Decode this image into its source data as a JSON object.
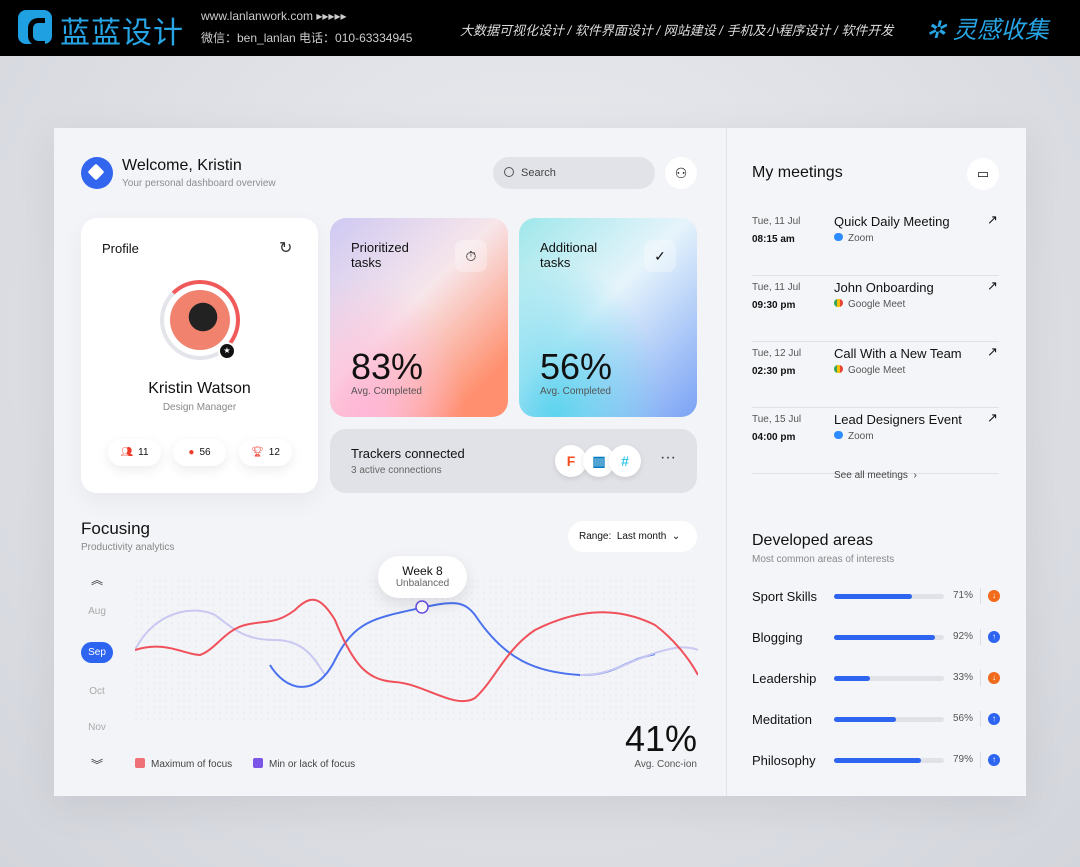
{
  "topbar": {
    "brand": "蓝蓝设计",
    "site": "www.lanlanwork.com ▸▸▸▸▸",
    "contact": "微信：ben_lanlan   电话：010-63334945",
    "services": "大数据可视化设计 / 软件界面设计 / 网站建设 / 手机及小程序设计 / 软件开发",
    "collect": "灵感收集"
  },
  "header": {
    "title": "Welcome, Kristin",
    "subtitle": "Your personal dashboard overview",
    "search_placeholder": "Search"
  },
  "profile": {
    "title": "Profile",
    "name": "Kristin Watson",
    "role": "Design Manager",
    "progress": 0.3,
    "stats": [
      {
        "icon": "users-icon",
        "value": "11"
      },
      {
        "icon": "badge-check-icon",
        "value": "56"
      },
      {
        "icon": "trophy-icon",
        "value": "12"
      }
    ]
  },
  "tasks": [
    {
      "title": "Prioritized tasks",
      "icon": "timer-icon",
      "value": "83%",
      "sub": "Avg. Completed"
    },
    {
      "title": "Additional tasks",
      "icon": "check-circle-icon",
      "value": "56%",
      "sub": "Avg. Completed"
    }
  ],
  "trackers": {
    "title": "Trackers connected",
    "sub": "3 active connections",
    "apps": [
      "Figma",
      "Trello",
      "Slack"
    ]
  },
  "focusing": {
    "title": "Focusing",
    "subtitle": "Productivity analytics",
    "range_label": "Range:",
    "range_value": "Last month",
    "months": [
      "Aug",
      "Sep",
      "Oct",
      "Nov"
    ],
    "selected_month": "Sep",
    "tooltip_title": "Week 8",
    "tooltip_sub": "Unbalanced",
    "legend": [
      {
        "name": "Maximum of focus",
        "color": "#f0505a"
      },
      {
        "name": "Min or lack of focus",
        "color": "#7a55e8"
      }
    ],
    "big_value": "41%",
    "big_label": "Avg. Conc-ion"
  },
  "meetings": {
    "title": "My meetings",
    "items": [
      {
        "date": "Tue, 11 Jul",
        "time": "08:15 am",
        "name": "Quick Daily Meeting",
        "platform": "Zoom"
      },
      {
        "date": "Tue, 11 Jul",
        "time": "09:30 pm",
        "name": "John Onboarding",
        "platform": "Google Meet"
      },
      {
        "date": "Tue, 12 Jul",
        "time": "02:30 pm",
        "name": "Call With a New Team",
        "platform": "Google Meet"
      },
      {
        "date": "Tue, 15 Jul",
        "time": "04:00 pm",
        "name": "Lead Designers Event",
        "platform": "Zoom"
      }
    ],
    "see_all": "See all meetings"
  },
  "areas": {
    "title": "Developed areas",
    "subtitle": "Most common areas of interests",
    "items": [
      {
        "label": "Sport Skills",
        "value": 71,
        "pct": "71%",
        "trend": "down"
      },
      {
        "label": "Blogging",
        "value": 92,
        "pct": "92%",
        "trend": "up"
      },
      {
        "label": "Leadership",
        "value": 33,
        "pct": "33%",
        "trend": "down"
      },
      {
        "label": "Meditation",
        "value": 56,
        "pct": "56%",
        "trend": "up"
      },
      {
        "label": "Philosophy",
        "value": 79,
        "pct": "79%",
        "trend": "up"
      }
    ]
  },
  "colors": {
    "accent": "#2d64f0",
    "down": "#f26a1b",
    "up": "#2d64f0"
  }
}
